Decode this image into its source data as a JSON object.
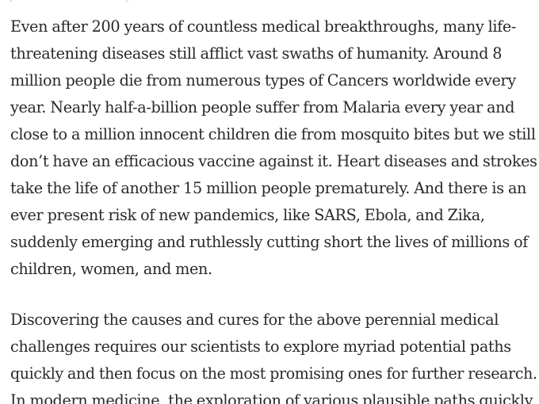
{
  "paragraphs": [
    {
      "lines": [
        "Even after 200 years of countless medical breakthroughs, many life-",
        "threatening diseases still afflict vast swaths of humanity. Around 8",
        "million people die from numerous types of Cancers worldwide every",
        "year. Nearly half-a-billion people suffer from Malaria every year and",
        "close to a million innocent children die from mosquito bites but we still",
        "don’t have an efficacious vaccine against it. Heart diseases and strokes",
        "take the life of another 15 million people prematurely. And there is an",
        "ever present risk of new pandemics, like SARS, Ebola, and Zika,",
        "suddenly emerging and ruthlessly cutting short the lives of millions of",
        "children, women, and men."
      ]
    },
    {
      "lines": [
        "Discovering the causes and cures for the above perennial medical",
        "challenges requires our scientists to explore myriad potential paths",
        "quickly and then focus on the most promising ones for further research.",
        "In modern medicine, the exploration of various plausible paths quickly"
      ]
    }
  ]
}
